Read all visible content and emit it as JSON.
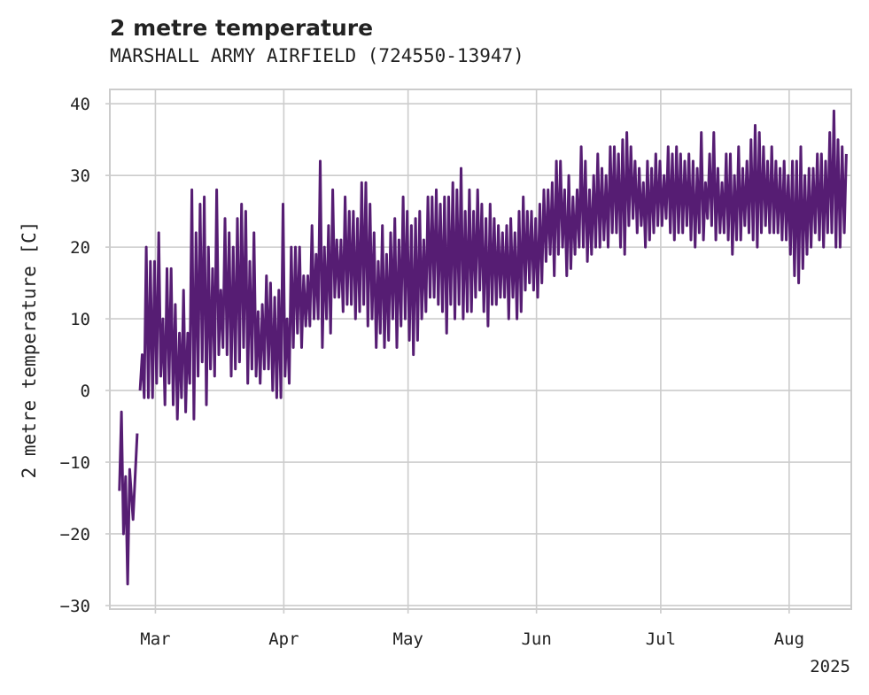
{
  "chart_data": {
    "type": "line",
    "title": "2 metre temperature",
    "subtitle": "MARSHALL ARMY AIRFIELD (724550-13947)",
    "ylabel": "2 metre temperature [C]",
    "xlabel": "",
    "year_label": "2025",
    "ylim": [
      -30.5,
      42
    ],
    "xlim": [
      "2025-02-18",
      "2025-08-16"
    ],
    "grid": true,
    "line_color": "#561d73",
    "yticks": [
      -30,
      -20,
      -10,
      0,
      10,
      20,
      30,
      40
    ],
    "xticks": [
      {
        "date": "2025-03-01",
        "label": "Mar"
      },
      {
        "date": "2025-04-01",
        "label": "Apr"
      },
      {
        "date": "2025-05-01",
        "label": "May"
      },
      {
        "date": "2025-06-01",
        "label": "Jun"
      },
      {
        "date": "2025-07-01",
        "label": "Jul"
      },
      {
        "date": "2025-08-01",
        "label": "Aug"
      }
    ],
    "series": [
      {
        "name": "",
        "x": [
          "2025-02-20",
          "2025-02-21",
          "2025-02-22",
          "2025-02-23",
          "2025-02-25",
          "2025-02-26",
          "2025-02-27",
          "2025-02-28",
          "2025-03-01",
          "2025-03-02",
          "2025-03-03",
          "2025-03-04",
          "2025-03-05",
          "2025-03-06",
          "2025-03-07",
          "2025-03-08",
          "2025-03-09",
          "2025-03-10",
          "2025-03-11",
          "2025-03-12",
          "2025-03-13",
          "2025-03-14",
          "2025-03-15",
          "2025-03-16",
          "2025-03-17",
          "2025-03-18",
          "2025-03-19",
          "2025-03-20",
          "2025-03-21",
          "2025-03-22",
          "2025-03-23",
          "2025-03-24",
          "2025-03-25",
          "2025-03-26",
          "2025-03-27",
          "2025-03-28",
          "2025-03-29",
          "2025-03-30",
          "2025-03-31",
          "2025-04-01",
          "2025-04-02",
          "2025-04-03",
          "2025-04-04",
          "2025-04-05",
          "2025-04-06",
          "2025-04-07",
          "2025-04-08",
          "2025-04-09",
          "2025-04-10",
          "2025-04-11",
          "2025-04-12",
          "2025-04-13",
          "2025-04-14",
          "2025-04-15",
          "2025-04-16",
          "2025-04-17",
          "2025-04-18",
          "2025-04-19",
          "2025-04-20",
          "2025-04-21",
          "2025-04-22",
          "2025-04-23",
          "2025-04-24",
          "2025-04-25",
          "2025-04-26",
          "2025-04-27",
          "2025-04-28",
          "2025-04-29",
          "2025-04-30",
          "2025-05-01",
          "2025-05-02",
          "2025-05-03",
          "2025-05-04",
          "2025-05-05",
          "2025-05-06",
          "2025-05-07",
          "2025-05-08",
          "2025-05-09",
          "2025-05-10",
          "2025-05-11",
          "2025-05-12",
          "2025-05-13",
          "2025-05-14",
          "2025-05-15",
          "2025-05-16",
          "2025-05-17",
          "2025-05-18",
          "2025-05-19",
          "2025-05-20",
          "2025-05-21",
          "2025-05-22",
          "2025-05-23",
          "2025-05-24",
          "2025-05-25",
          "2025-05-26",
          "2025-05-27",
          "2025-05-28",
          "2025-05-29",
          "2025-05-30",
          "2025-05-31",
          "2025-06-01",
          "2025-06-02",
          "2025-06-03",
          "2025-06-04",
          "2025-06-05",
          "2025-06-06",
          "2025-06-07",
          "2025-06-08",
          "2025-06-09",
          "2025-06-10",
          "2025-06-11",
          "2025-06-12",
          "2025-06-13",
          "2025-06-14",
          "2025-06-15",
          "2025-06-16",
          "2025-06-17",
          "2025-06-18",
          "2025-06-19",
          "2025-06-20",
          "2025-06-21",
          "2025-06-22",
          "2025-06-23",
          "2025-06-24",
          "2025-06-25",
          "2025-06-26",
          "2025-06-27",
          "2025-06-28",
          "2025-06-29",
          "2025-06-30",
          "2025-07-01",
          "2025-07-02",
          "2025-07-03",
          "2025-07-04",
          "2025-07-05",
          "2025-07-06",
          "2025-07-07",
          "2025-07-08",
          "2025-07-09",
          "2025-07-10",
          "2025-07-11",
          "2025-07-12",
          "2025-07-13",
          "2025-07-14",
          "2025-07-15",
          "2025-07-16",
          "2025-07-17",
          "2025-07-18",
          "2025-07-19",
          "2025-07-20",
          "2025-07-21",
          "2025-07-22",
          "2025-07-23",
          "2025-07-24",
          "2025-07-25",
          "2025-07-26",
          "2025-07-27",
          "2025-07-28",
          "2025-07-29",
          "2025-07-30",
          "2025-07-31",
          "2025-08-01",
          "2025-08-02",
          "2025-08-03",
          "2025-08-04",
          "2025-08-05",
          "2025-08-06",
          "2025-08-07",
          "2025-08-08",
          "2025-08-09",
          "2025-08-10",
          "2025-08-11",
          "2025-08-12",
          "2025-08-13",
          "2025-08-14"
        ],
        "min": [
          -14,
          -20,
          -27,
          -18,
          0,
          -1,
          -1,
          -1,
          1,
          2,
          -2,
          1,
          -2,
          -4,
          -1,
          -3,
          1,
          -4,
          2,
          4,
          -2,
          3,
          2,
          5,
          6,
          5,
          2,
          3,
          4,
          6,
          1,
          3,
          2,
          1,
          3,
          3,
          0,
          -1,
          -1,
          2,
          1,
          6,
          8,
          6,
          9,
          9,
          10,
          10,
          6,
          10,
          8,
          13,
          13,
          11,
          12,
          12,
          10,
          11,
          12,
          9,
          10,
          6,
          8,
          6,
          7,
          10,
          6,
          9,
          10,
          7,
          5,
          7,
          10,
          11,
          13,
          13,
          12,
          11,
          8,
          12,
          10,
          12,
          10,
          11,
          11,
          13,
          14,
          11,
          9,
          12,
          12,
          13,
          13,
          10,
          13,
          10,
          11,
          14,
          15,
          14,
          13,
          15,
          18,
          19,
          16,
          19,
          20,
          16,
          17,
          19,
          20,
          20,
          18,
          19,
          20,
          20,
          21,
          20,
          22,
          22,
          20,
          19,
          23,
          24,
          22,
          23,
          20,
          21,
          22,
          23,
          23,
          24,
          22,
          21,
          22,
          22,
          23,
          21,
          20,
          22,
          21,
          24,
          23,
          21,
          22,
          22,
          21,
          19,
          21,
          21,
          23,
          22,
          21,
          20,
          22,
          23,
          22,
          22,
          22,
          21,
          21,
          19,
          16,
          15,
          17,
          19,
          20,
          22,
          21,
          20,
          22,
          22,
          20,
          20,
          22
        ],
        "max": [
          -3,
          -12,
          -11,
          -6,
          5,
          20,
          18,
          18,
          22,
          10,
          17,
          17,
          12,
          8,
          14,
          8,
          28,
          22,
          26,
          27,
          20,
          17,
          28,
          14,
          24,
          22,
          20,
          24,
          26,
          25,
          18,
          22,
          11,
          12,
          16,
          15,
          13,
          14,
          26,
          10,
          20,
          20,
          20,
          16,
          16,
          23,
          19,
          32,
          20,
          23,
          28,
          21,
          21,
          27,
          25,
          25,
          24,
          29,
          29,
          26,
          22,
          18,
          23,
          19,
          22,
          24,
          21,
          27,
          25,
          23,
          24,
          25,
          21,
          27,
          27,
          28,
          26,
          27,
          27,
          29,
          28,
          31,
          25,
          28,
          25,
          28,
          26,
          24,
          26,
          24,
          23,
          22,
          23,
          24,
          22,
          25,
          27,
          25,
          25,
          24,
          26,
          28,
          28,
          29,
          32,
          32,
          28,
          30,
          27,
          28,
          34,
          32,
          28,
          30,
          33,
          31,
          30,
          34,
          34,
          33,
          35,
          36,
          34,
          32,
          31,
          29,
          32,
          31,
          33,
          32,
          30,
          34,
          33,
          34,
          33,
          32,
          33,
          32,
          31,
          36,
          29,
          33,
          36,
          31,
          29,
          33,
          33,
          30,
          34,
          31,
          32,
          35,
          37,
          36,
          34,
          32,
          34,
          32,
          31,
          32,
          30,
          32,
          32,
          34,
          30,
          31,
          31,
          33,
          33,
          32,
          36,
          39,
          35,
          34,
          33
        ]
      }
    ]
  }
}
